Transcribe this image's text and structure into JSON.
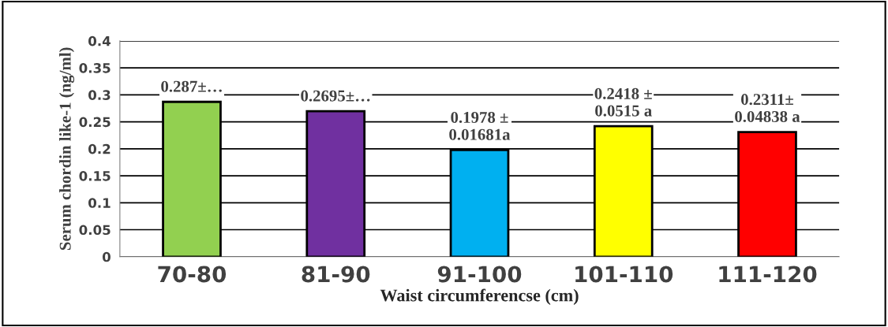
{
  "chart_data": {
    "type": "bar",
    "categories": [
      "70-80",
      "81-90",
      "91-100",
      "101-110",
      "111-120"
    ],
    "values": [
      0.287,
      0.2695,
      0.1978,
      0.2418,
      0.2311
    ],
    "colors": [
      "#92d050",
      "#7030a0",
      "#00b0f0",
      "#ffff00",
      "#ff0000"
    ],
    "value_labels": [
      "0.287±…",
      "0.2695±…",
      "0.1978 ±\n0.01681a",
      "0.2418 ±\n0.0515 a",
      "0.2311±\n0.04838 a"
    ],
    "xlabel": "Waist circumferencse (cm)",
    "ylabel": "Serum chordin like-1 (ng/ml)",
    "ylim": [
      0,
      0.4
    ],
    "yticks": [
      0,
      0.05,
      0.1,
      0.15,
      0.2,
      0.25,
      0.3,
      0.35,
      0.4
    ],
    "grid": "y",
    "legend": false
  }
}
